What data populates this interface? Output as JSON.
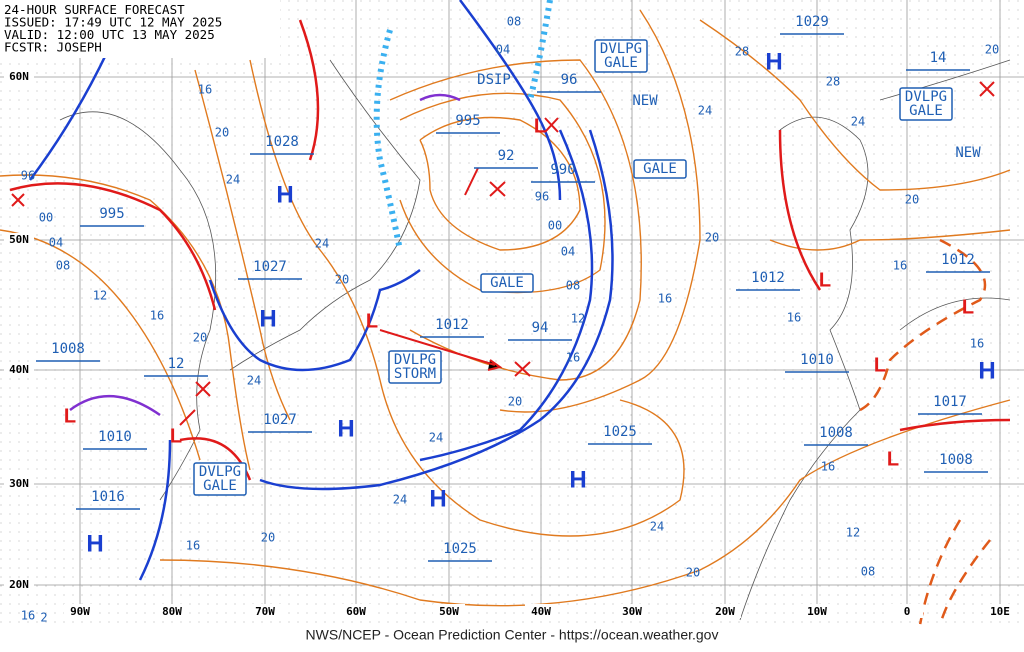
{
  "header": {
    "lines": [
      "24-HOUR SURFACE FORECAST",
      "ISSUED: 17:49 UTC 12 MAY 2025",
      "VALID: 12:00 UTC 13 MAY 2025",
      "FCSTR: JOSEPH"
    ]
  },
  "footer": "NWS/NCEP - Ocean Prediction Center - https://ocean.weather.gov",
  "lat_labels": [
    "60N",
    "50N",
    "40N",
    "30N",
    "20N"
  ],
  "lon_labels": [
    "90W",
    "80W",
    "70W",
    "60W",
    "50W",
    "40W",
    "30W",
    "20W",
    "10W",
    "0",
    "10E"
  ],
  "pressures": [
    "1028",
    "995",
    "1027",
    "1008",
    "12",
    "1010",
    "1016",
    "1027",
    "1012",
    "94",
    "995",
    "92",
    "990",
    "96",
    "1029",
    "14",
    "1012",
    "1010",
    "1012",
    "1025",
    "1025",
    "1008",
    "1017",
    "1008"
  ],
  "warnings": [
    [
      "DVLPG",
      "GALE"
    ],
    [
      "DVLPG",
      "GALE"
    ],
    [
      "GALE"
    ],
    [
      "GALE"
    ],
    [
      "DVLPG",
      "STORM"
    ],
    [
      "DVLPG",
      "GALE"
    ]
  ],
  "notes": [
    "NEW",
    "NEW",
    "DSIP"
  ],
  "highs": [
    "H",
    "H",
    "H",
    "H",
    "H",
    "H",
    "H",
    "H"
  ],
  "lows": [
    "L",
    "L",
    "L",
    "L",
    "L",
    "L",
    "L",
    "L"
  ],
  "isobar_labels": [
    "96",
    "00",
    "04",
    "08",
    "12",
    "16",
    "20",
    "24",
    "16",
    "20",
    "24",
    "24",
    "20",
    "00",
    "96",
    "04",
    "08",
    "12",
    "16",
    "20",
    "24",
    "24",
    "20",
    "16",
    "24",
    "20",
    "16",
    "20",
    "24",
    "28",
    "28",
    "24",
    "20",
    "16",
    "16",
    "16",
    "12",
    "08",
    "16",
    "20",
    "04",
    "08",
    "16",
    "2"
  ]
}
